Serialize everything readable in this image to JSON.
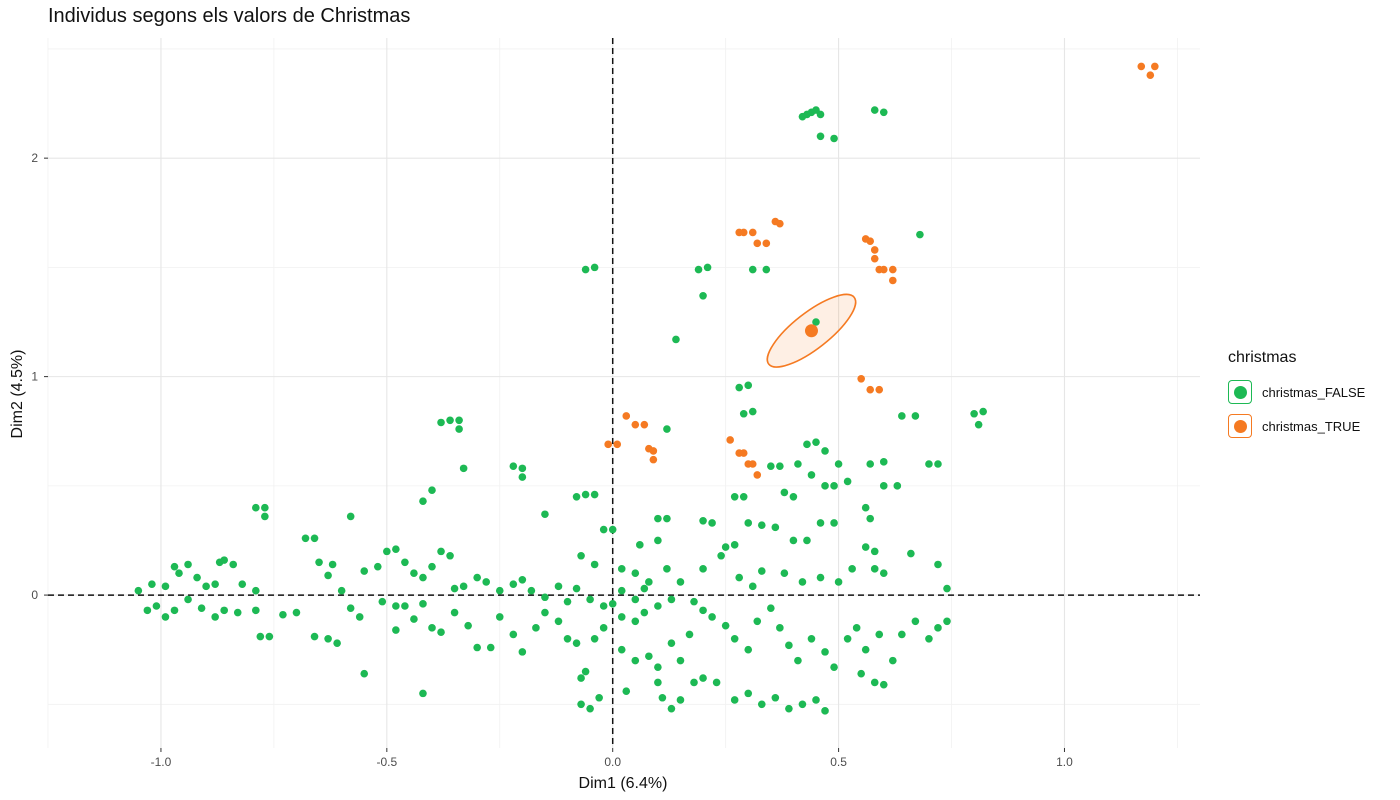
{
  "chart_data": {
    "type": "scatter",
    "title": "Individus segons els valors de Christmas",
    "xlabel": "Dim1 (6.4%)",
    "ylabel": "Dim2 (4.5%)",
    "xlim": [
      -1.25,
      1.3
    ],
    "ylim": [
      -0.7,
      2.55
    ],
    "x_ticks": [
      -1.0,
      -0.5,
      0.0,
      0.5,
      1.0
    ],
    "x_tick_labels": [
      "-1.0",
      "-0.5",
      "0.0",
      "0.5",
      "1.0"
    ],
    "y_ticks": [
      0,
      1,
      2
    ],
    "y_tick_labels": [
      "0",
      "1",
      "2"
    ],
    "grid": true,
    "reference_lines": [
      {
        "axis": "x",
        "value": 0,
        "style": "dashed"
      },
      {
        "axis": "y",
        "value": 0,
        "style": "dashed"
      }
    ],
    "legend": {
      "title": "christmas",
      "placement": "right",
      "entries": [
        {
          "label": "christmas_FALSE",
          "color": "#1DB954"
        },
        {
          "label": "christmas_TRUE",
          "color": "#F57A22"
        }
      ]
    },
    "series": [
      {
        "name": "christmas_FALSE",
        "color": "#1DB954",
        "points": [
          [
            0.43,
            2.2
          ],
          [
            0.44,
            2.21
          ],
          [
            0.45,
            2.22
          ],
          [
            0.46,
            2.2
          ],
          [
            0.42,
            2.19
          ],
          [
            0.46,
            2.1
          ],
          [
            0.49,
            2.09
          ],
          [
            0.58,
            2.22
          ],
          [
            0.6,
            2.21
          ],
          [
            -0.06,
            1.49
          ],
          [
            -0.04,
            1.5
          ],
          [
            0.19,
            1.49
          ],
          [
            0.21,
            1.5
          ],
          [
            0.2,
            1.37
          ],
          [
            0.31,
            1.49
          ],
          [
            0.34,
            1.49
          ],
          [
            0.45,
            1.25
          ],
          [
            0.14,
            1.17
          ],
          [
            0.68,
            1.65
          ],
          [
            0.28,
            0.95
          ],
          [
            0.3,
            0.96
          ],
          [
            0.29,
            0.83
          ],
          [
            0.31,
            0.84
          ],
          [
            0.12,
            0.76
          ],
          [
            0.64,
            0.82
          ],
          [
            0.67,
            0.82
          ],
          [
            0.8,
            0.83
          ],
          [
            0.82,
            0.84
          ],
          [
            0.81,
            0.78
          ],
          [
            -0.38,
            0.79
          ],
          [
            -0.36,
            0.8
          ],
          [
            -0.34,
            0.8
          ],
          [
            -0.34,
            0.76
          ],
          [
            -0.33,
            0.58
          ],
          [
            -0.2,
            0.58
          ],
          [
            -0.22,
            0.59
          ],
          [
            -0.2,
            0.54
          ],
          [
            -0.4,
            0.48
          ],
          [
            -0.42,
            0.43
          ],
          [
            -0.79,
            0.4
          ],
          [
            -0.77,
            0.4
          ],
          [
            -0.77,
            0.36
          ],
          [
            -0.58,
            0.36
          ],
          [
            -0.06,
            0.46
          ],
          [
            -0.08,
            0.45
          ],
          [
            -0.04,
            0.46
          ],
          [
            -0.15,
            0.37
          ],
          [
            -0.02,
            0.3
          ],
          [
            0.0,
            0.3
          ],
          [
            0.43,
            0.69
          ],
          [
            0.45,
            0.7
          ],
          [
            0.47,
            0.66
          ],
          [
            0.41,
            0.6
          ],
          [
            0.44,
            0.55
          ],
          [
            0.5,
            0.6
          ],
          [
            0.52,
            0.52
          ],
          [
            0.57,
            0.6
          ],
          [
            0.6,
            0.61
          ],
          [
            0.6,
            0.5
          ],
          [
            0.63,
            0.5
          ],
          [
            0.7,
            0.6
          ],
          [
            0.72,
            0.6
          ],
          [
            0.35,
            0.59
          ],
          [
            0.37,
            0.59
          ],
          [
            0.38,
            0.47
          ],
          [
            0.4,
            0.45
          ],
          [
            0.47,
            0.5
          ],
          [
            0.49,
            0.5
          ],
          [
            0.56,
            0.4
          ],
          [
            0.57,
            0.35
          ],
          [
            0.66,
            0.19
          ],
          [
            0.72,
            0.14
          ],
          [
            0.74,
            0.03
          ],
          [
            0.27,
            0.45
          ],
          [
            0.29,
            0.45
          ],
          [
            0.2,
            0.34
          ],
          [
            0.22,
            0.33
          ],
          [
            0.1,
            0.35
          ],
          [
            0.12,
            0.35
          ],
          [
            0.06,
            0.23
          ],
          [
            0.1,
            0.25
          ],
          [
            0.25,
            0.22
          ],
          [
            0.27,
            0.23
          ],
          [
            0.3,
            0.33
          ],
          [
            0.33,
            0.32
          ],
          [
            0.36,
            0.31
          ],
          [
            0.4,
            0.25
          ],
          [
            0.43,
            0.25
          ],
          [
            0.46,
            0.33
          ],
          [
            0.49,
            0.33
          ],
          [
            0.56,
            0.22
          ],
          [
            0.58,
            0.2
          ],
          [
            -1.05,
            0.02
          ],
          [
            -1.02,
            0.05
          ],
          [
            -0.99,
            0.04
          ],
          [
            -0.96,
            0.1
          ],
          [
            -0.97,
            0.13
          ],
          [
            -0.94,
            0.14
          ],
          [
            -0.92,
            0.08
          ],
          [
            -0.9,
            0.04
          ],
          [
            -0.88,
            0.05
          ],
          [
            -0.87,
            0.15
          ],
          [
            -0.86,
            0.16
          ],
          [
            -0.84,
            0.14
          ],
          [
            -0.82,
            0.05
          ],
          [
            -0.79,
            0.02
          ],
          [
            -1.03,
            -0.07
          ],
          [
            -1.01,
            -0.05
          ],
          [
            -0.99,
            -0.1
          ],
          [
            -0.97,
            -0.07
          ],
          [
            -0.94,
            -0.02
          ],
          [
            -0.91,
            -0.06
          ],
          [
            -0.88,
            -0.1
          ],
          [
            -0.86,
            -0.07
          ],
          [
            -0.83,
            -0.08
          ],
          [
            -0.79,
            -0.07
          ],
          [
            -0.78,
            -0.19
          ],
          [
            -0.76,
            -0.19
          ],
          [
            -0.73,
            -0.09
          ],
          [
            -0.7,
            -0.08
          ],
          [
            -0.68,
            0.26
          ],
          [
            -0.66,
            0.26
          ],
          [
            -0.65,
            0.15
          ],
          [
            -0.62,
            0.14
          ],
          [
            -0.66,
            -0.19
          ],
          [
            -0.63,
            -0.2
          ],
          [
            -0.61,
            -0.22
          ],
          [
            -0.63,
            0.09
          ],
          [
            -0.6,
            0.02
          ],
          [
            -0.58,
            -0.06
          ],
          [
            -0.56,
            -0.1
          ],
          [
            -0.55,
            0.11
          ],
          [
            -0.52,
            0.13
          ],
          [
            -0.5,
            0.2
          ],
          [
            -0.48,
            0.21
          ],
          [
            -0.51,
            -0.03
          ],
          [
            -0.48,
            -0.05
          ],
          [
            -0.46,
            0.15
          ],
          [
            -0.44,
            0.1
          ],
          [
            -0.42,
            0.08
          ],
          [
            -0.4,
            0.13
          ],
          [
            -0.38,
            0.2
          ],
          [
            -0.36,
            0.18
          ],
          [
            -0.35,
            0.03
          ],
          [
            -0.33,
            0.04
          ],
          [
            -0.3,
            0.08
          ],
          [
            -0.28,
            0.06
          ],
          [
            -0.25,
            0.02
          ],
          [
            -0.22,
            0.05
          ],
          [
            -0.2,
            0.07
          ],
          [
            -0.46,
            -0.05
          ],
          [
            -0.44,
            -0.11
          ],
          [
            -0.42,
            -0.04
          ],
          [
            -0.4,
            -0.15
          ],
          [
            -0.38,
            -0.17
          ],
          [
            -0.35,
            -0.08
          ],
          [
            -0.32,
            -0.14
          ],
          [
            -0.3,
            -0.24
          ],
          [
            -0.27,
            -0.24
          ],
          [
            -0.25,
            -0.1
          ],
          [
            -0.22,
            -0.18
          ],
          [
            -0.2,
            -0.26
          ],
          [
            -0.17,
            -0.15
          ],
          [
            -0.15,
            -0.08
          ],
          [
            -0.12,
            -0.12
          ],
          [
            -0.1,
            -0.2
          ],
          [
            -0.08,
            -0.22
          ],
          [
            -0.55,
            -0.36
          ],
          [
            -0.42,
            -0.45
          ],
          [
            -0.48,
            -0.16
          ],
          [
            -0.18,
            0.02
          ],
          [
            -0.15,
            -0.01
          ],
          [
            -0.12,
            0.04
          ],
          [
            -0.1,
            -0.03
          ],
          [
            -0.08,
            0.03
          ],
          [
            -0.05,
            -0.02
          ],
          [
            -0.02,
            -0.05
          ],
          [
            0.0,
            -0.04
          ],
          [
            0.02,
            0.02
          ],
          [
            0.05,
            -0.02
          ],
          [
            0.07,
            0.03
          ],
          [
            0.1,
            -0.05
          ],
          [
            0.13,
            -0.02
          ],
          [
            0.15,
            0.06
          ],
          [
            0.18,
            -0.03
          ],
          [
            0.2,
            -0.07
          ],
          [
            -0.07,
            -0.38
          ],
          [
            -0.06,
            -0.35
          ],
          [
            -0.03,
            -0.47
          ],
          [
            -0.07,
            -0.5
          ],
          [
            -0.05,
            -0.52
          ],
          [
            0.03,
            -0.44
          ],
          [
            0.1,
            -0.4
          ],
          [
            0.11,
            -0.47
          ],
          [
            0.13,
            -0.52
          ],
          [
            0.15,
            -0.48
          ],
          [
            0.18,
            -0.4
          ],
          [
            0.2,
            -0.38
          ],
          [
            0.23,
            -0.4
          ],
          [
            0.22,
            -0.1
          ],
          [
            0.25,
            -0.14
          ],
          [
            0.27,
            -0.2
          ],
          [
            0.3,
            -0.25
          ],
          [
            0.32,
            -0.12
          ],
          [
            0.35,
            -0.06
          ],
          [
            0.37,
            -0.15
          ],
          [
            0.39,
            -0.23
          ],
          [
            0.41,
            -0.3
          ],
          [
            0.44,
            -0.2
          ],
          [
            0.47,
            -0.26
          ],
          [
            0.49,
            -0.33
          ],
          [
            0.52,
            -0.2
          ],
          [
            0.54,
            -0.15
          ],
          [
            0.56,
            -0.25
          ],
          [
            0.59,
            -0.18
          ],
          [
            0.62,
            -0.3
          ],
          [
            0.64,
            -0.18
          ],
          [
            0.67,
            -0.12
          ],
          [
            0.7,
            -0.2
          ],
          [
            0.72,
            -0.15
          ],
          [
            0.74,
            -0.12
          ],
          [
            0.27,
            -0.48
          ],
          [
            0.3,
            -0.45
          ],
          [
            0.33,
            -0.5
          ],
          [
            0.36,
            -0.47
          ],
          [
            0.39,
            -0.52
          ],
          [
            0.42,
            -0.5
          ],
          [
            0.45,
            -0.48
          ],
          [
            0.47,
            -0.53
          ],
          [
            0.55,
            -0.36
          ],
          [
            0.58,
            -0.4
          ],
          [
            0.6,
            -0.41
          ],
          [
            0.02,
            -0.25
          ],
          [
            0.05,
            -0.3
          ],
          [
            0.08,
            -0.28
          ],
          [
            0.1,
            -0.33
          ],
          [
            0.13,
            -0.22
          ],
          [
            0.15,
            -0.3
          ],
          [
            0.17,
            -0.18
          ],
          [
            0.05,
            -0.12
          ],
          [
            0.07,
            -0.08
          ],
          [
            -0.02,
            -0.15
          ],
          [
            -0.04,
            -0.2
          ],
          [
            0.02,
            -0.1
          ],
          [
            -0.07,
            0.18
          ],
          [
            -0.04,
            0.14
          ],
          [
            0.02,
            0.12
          ],
          [
            0.05,
            0.1
          ],
          [
            0.08,
            0.06
          ],
          [
            0.12,
            0.12
          ],
          [
            0.2,
            0.12
          ],
          [
            0.24,
            0.18
          ],
          [
            0.28,
            0.08
          ],
          [
            0.31,
            0.04
          ],
          [
            0.33,
            0.11
          ],
          [
            0.38,
            0.1
          ],
          [
            0.42,
            0.06
          ],
          [
            0.46,
            0.08
          ],
          [
            0.5,
            0.06
          ],
          [
            0.53,
            0.12
          ],
          [
            0.58,
            0.12
          ],
          [
            0.6,
            0.1
          ]
        ]
      },
      {
        "name": "christmas_TRUE",
        "color": "#F57A22",
        "points": [
          [
            1.17,
            2.42
          ],
          [
            1.2,
            2.42
          ],
          [
            1.19,
            2.38
          ],
          [
            0.28,
            1.66
          ],
          [
            0.29,
            1.66
          ],
          [
            0.31,
            1.66
          ],
          [
            0.32,
            1.61
          ],
          [
            0.34,
            1.61
          ],
          [
            0.36,
            1.71
          ],
          [
            0.37,
            1.7
          ],
          [
            0.56,
            1.63
          ],
          [
            0.57,
            1.62
          ],
          [
            0.58,
            1.58
          ],
          [
            0.58,
            1.54
          ],
          [
            0.59,
            1.49
          ],
          [
            0.6,
            1.49
          ],
          [
            0.62,
            1.49
          ],
          [
            0.62,
            1.44
          ],
          [
            0.55,
            0.99
          ],
          [
            0.57,
            0.94
          ],
          [
            0.59,
            0.94
          ],
          [
            0.03,
            0.82
          ],
          [
            0.05,
            0.78
          ],
          [
            0.07,
            0.78
          ],
          [
            0.08,
            0.67
          ],
          [
            0.09,
            0.66
          ],
          [
            0.09,
            0.62
          ],
          [
            -0.01,
            0.69
          ],
          [
            0.01,
            0.69
          ],
          [
            0.26,
            0.71
          ],
          [
            0.28,
            0.65
          ],
          [
            0.29,
            0.65
          ],
          [
            0.3,
            0.6
          ],
          [
            0.31,
            0.6
          ],
          [
            0.32,
            0.55
          ]
        ]
      }
    ],
    "supplementary": {
      "barycenter": {
        "x": 0.44,
        "y": 1.21,
        "color": "#F57A22"
      },
      "ellipse": {
        "cx": 0.44,
        "cy": 1.21,
        "rx": 0.12,
        "ry": 0.04,
        "rotation_deg": 38,
        "color": "#F57A22"
      }
    }
  }
}
